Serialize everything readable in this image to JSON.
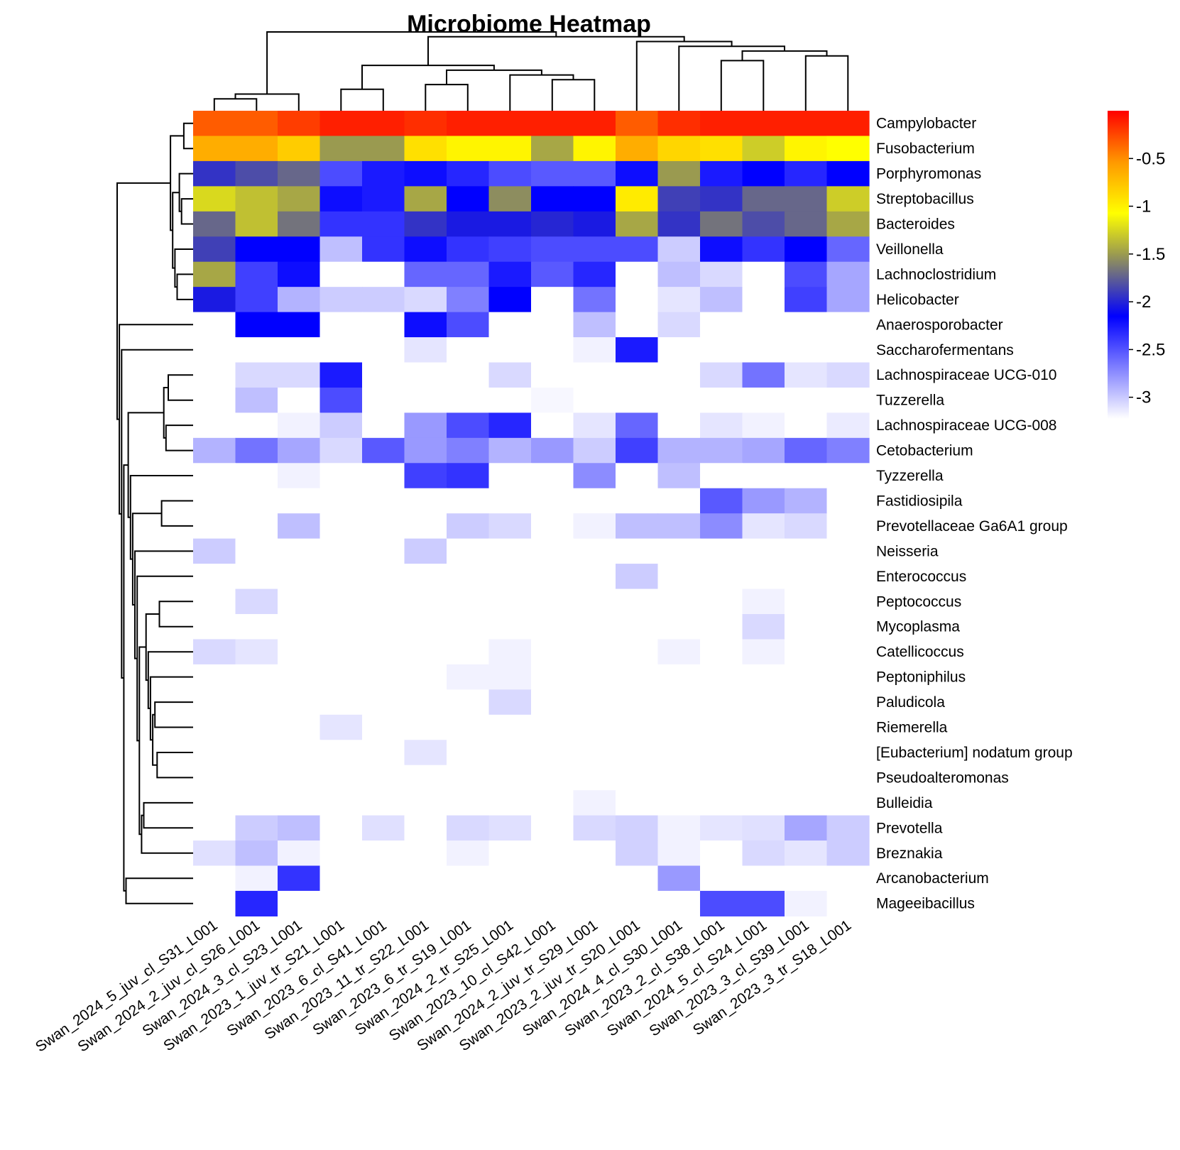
{
  "chart_data": {
    "type": "heatmap",
    "title": "Microbiome Heatmap",
    "columns": [
      "Swan_2024_5_juv_cl_S31_L001",
      "Swan_2024_2_juv_cl_S26_L001",
      "Swan_2024_3_cl_S23_L001",
      "Swan_2023_1_juv_tr_S21_L001",
      "Swan_2023_6_cl_S41_L001",
      "Swan_2023_11_tr_S22_L001",
      "Swan_2023_6_tr_S19_L001",
      "Swan_2024_2_tr_S25_L001",
      "Swan_2023_10_cl_S42_L001",
      "Swan_2024_2_juv_tr_S29_L001",
      "Swan_2023_2_juv_tr_S20_L001",
      "Swan_2024_4_cl_S30_L001",
      "Swan_2023_2_cl_S38_L001",
      "Swan_2024_5_cl_S24_L001",
      "Swan_2023_3_cl_S39_L001",
      "Swan_2023_3_tr_S18_L001"
    ],
    "rows": [
      "Campylobacter",
      "Fusobacterium",
      "Porphyromonas",
      "Streptobacillus",
      "Bacteroides",
      "Veillonella",
      "Lachnoclostridium",
      "Helicobacter",
      "Anaerosporobacter",
      "Saccharofermentans",
      "Lachnospiraceae UCG-010",
      "Tuzzerella",
      "Lachnospiraceae UCG-008",
      "Cetobacterium",
      "Tyzzerella",
      "Fastidiosipila",
      "Prevotellaceae Ga6A1 group",
      "Neisseria",
      "Enterococcus",
      "Peptococcus",
      "Mycoplasma",
      "Catellicoccus",
      "Peptoniphilus",
      "Paludicola",
      "Riemerella",
      "[Eubacterium] nodatum group",
      "Pseudoalteromonas",
      "Bulleidia",
      "Prevotella",
      "Breznakia",
      "Arcanobacterium",
      "Mageeibacillus"
    ],
    "values": [
      [
        -0.3,
        -0.3,
        -0.2,
        -0.1,
        -0.1,
        -0.15,
        -0.1,
        -0.1,
        -0.1,
        -0.1,
        -0.3,
        -0.15,
        -0.1,
        -0.1,
        -0.1,
        -0.1
      ],
      [
        -0.6,
        -0.6,
        -0.75,
        -1.4,
        -1.4,
        -0.85,
        -0.95,
        -0.95,
        -1.35,
        -0.95,
        -0.6,
        -0.8,
        -0.85,
        -1.2,
        -0.95,
        -1.0
      ],
      [
        -1.8,
        -1.7,
        -1.6,
        -2.3,
        -2.1,
        -2.05,
        -2.15,
        -2.3,
        -2.35,
        -2.35,
        -2.05,
        -1.4,
        -2.1,
        -2.0,
        -2.15,
        -2.0
      ],
      [
        -1.15,
        -1.25,
        -1.35,
        -2.05,
        -2.1,
        -1.35,
        -2.0,
        -1.45,
        -2.0,
        -2.0,
        -0.9,
        -1.75,
        -1.8,
        -1.6,
        -1.6,
        -1.2
      ],
      [
        -1.6,
        -1.25,
        -1.55,
        -2.2,
        -2.2,
        -1.8,
        -1.9,
        -1.9,
        -1.85,
        -1.9,
        -1.35,
        -1.8,
        -1.55,
        -1.7,
        -1.6,
        -1.35
      ],
      [
        -1.75,
        -2.0,
        -2.0,
        -2.75,
        -2.2,
        -2.05,
        -2.2,
        -2.25,
        -2.3,
        -2.3,
        -2.3,
        -2.8,
        -2.05,
        -2.2,
        -2.0,
        -2.4
      ],
      [
        -1.35,
        -2.25,
        -2.05,
        -3.0,
        -3.0,
        -2.4,
        -2.4,
        -2.1,
        -2.35,
        -2.15,
        -3.1,
        -2.75,
        -2.85,
        -3.0,
        -2.3,
        -2.65
      ],
      [
        -1.9,
        -2.25,
        -2.7,
        -2.8,
        -2.8,
        -2.85,
        -2.5,
        -2.0,
        -3.1,
        -2.45,
        -3.1,
        -2.9,
        -2.75,
        -3.0,
        -2.25,
        -2.65
      ],
      [
        -3.1,
        -2.0,
        -2.0,
        -3.1,
        -3.1,
        -2.05,
        -2.3,
        -3.1,
        -3.1,
        -2.75,
        -3.1,
        -2.85,
        -3.1,
        -3.1,
        -3.1,
        -3.1
      ],
      [
        -3.1,
        -3.1,
        -3.1,
        -3.1,
        -3.1,
        -2.9,
        -3.1,
        -3.1,
        -3.1,
        -2.95,
        -2.1,
        -3.1,
        -3.1,
        -3.1,
        -3.1,
        -3.1
      ],
      [
        -3.1,
        -2.85,
        -2.85,
        -2.1,
        -3.1,
        -3.1,
        -3.1,
        -2.85,
        -3.1,
        -3.1,
        -3.1,
        -3.1,
        -2.85,
        -2.45,
        -2.9,
        -2.85
      ],
      [
        -3.1,
        -2.75,
        -3.1,
        -2.3,
        -3.1,
        -3.1,
        -3.1,
        -3.1,
        -2.97,
        -3.1,
        -3.1,
        -3.1,
        -3.1,
        -3.1,
        -3.1,
        -3.1
      ],
      [
        -3.1,
        -3.1,
        -2.95,
        -2.8,
        -3.1,
        -2.6,
        -2.3,
        -2.15,
        -3.1,
        -2.9,
        -2.4,
        -3.1,
        -2.9,
        -2.95,
        -3.1,
        -2.92
      ],
      [
        -2.7,
        -2.45,
        -2.65,
        -2.85,
        -2.35,
        -2.6,
        -2.5,
        -2.7,
        -2.6,
        -2.8,
        -2.25,
        -2.7,
        -2.7,
        -2.65,
        -2.4,
        -2.5
      ],
      [
        -3.1,
        -3.1,
        -2.95,
        -3.1,
        -3.1,
        -2.25,
        -2.2,
        -3.1,
        -3.1,
        -2.55,
        -3.1,
        -2.75,
        -3.1,
        -3.1,
        -3.1,
        -3.1
      ],
      [
        -3.1,
        -3.1,
        -3.1,
        -3.1,
        -3.1,
        -3.1,
        -3.1,
        -3.1,
        -3.1,
        -3.1,
        -3.1,
        -3.1,
        -2.35,
        -2.6,
        -2.7,
        -3.1
      ],
      [
        -3.1,
        -3.1,
        -2.75,
        -3.1,
        -3.1,
        -3.1,
        -2.8,
        -2.85,
        -3.1,
        -2.95,
        -2.75,
        -2.75,
        -2.55,
        -2.9,
        -2.85,
        -3.1
      ],
      [
        -2.8,
        -3.1,
        -3.1,
        -3.1,
        -3.1,
        -2.8,
        -3.1,
        -3.1,
        -3.1,
        -3.1,
        -3.1,
        -3.1,
        -3.1,
        -3.1,
        -3.1,
        -3.1
      ],
      [
        -3.1,
        -3.1,
        -3.1,
        -3.1,
        -3.1,
        -3.1,
        -3.1,
        -3.1,
        -3.1,
        -3.1,
        -2.8,
        -3.1,
        -3.1,
        -3.1,
        -3.1,
        -3.1
      ],
      [
        -3.1,
        -2.85,
        -3.1,
        -3.1,
        -3.1,
        -3.1,
        -3.1,
        -3.1,
        -3.1,
        -3.1,
        -3.1,
        -3.1,
        -3.1,
        -2.95,
        -3.1,
        -3.1
      ],
      [
        -3.1,
        -3.1,
        -3.1,
        -3.1,
        -3.1,
        -3.1,
        -3.1,
        -3.1,
        -3.1,
        -3.1,
        -3.1,
        -3.1,
        -3.1,
        -2.85,
        -3.1,
        -3.1
      ],
      [
        -2.85,
        -2.9,
        -3.1,
        -3.1,
        -3.1,
        -3.1,
        -3.1,
        -2.95,
        -3.1,
        -3.1,
        -3.1,
        -2.95,
        -3.1,
        -2.95,
        -3.1,
        -3.1
      ],
      [
        -3.1,
        -3.1,
        -3.1,
        -3.1,
        -3.1,
        -3.1,
        -2.95,
        -2.95,
        -3.1,
        -3.1,
        -3.1,
        -3.1,
        -3.1,
        -3.1,
        -3.1,
        -3.1
      ],
      [
        -3.1,
        -3.1,
        -3.1,
        -3.1,
        -3.1,
        -3.1,
        -3.1,
        -2.85,
        -3.1,
        -3.1,
        -3.1,
        -3.1,
        -3.1,
        -3.1,
        -3.1,
        -3.1
      ],
      [
        -3.1,
        -3.1,
        -3.1,
        -2.9,
        -3.1,
        -3.1,
        -3.1,
        -3.1,
        -3.1,
        -3.1,
        -3.1,
        -3.1,
        -3.1,
        -3.1,
        -3.1,
        -3.1
      ],
      [
        -3.1,
        -3.1,
        -3.1,
        -3.1,
        -3.1,
        -2.9,
        -3.1,
        -3.1,
        -3.1,
        -3.1,
        -3.1,
        -3.1,
        -3.1,
        -3.1,
        -3.1,
        -3.1
      ],
      [
        -3.1,
        -3.1,
        -3.1,
        -3.1,
        -3.1,
        -3.1,
        -3.1,
        -3.1,
        -3.1,
        -3.1,
        -3.1,
        -3.1,
        -3.1,
        -3.1,
        -3.1,
        -3.1
      ],
      [
        -3.1,
        -3.1,
        -3.1,
        -3.1,
        -3.1,
        -3.1,
        -3.1,
        -3.1,
        -3.1,
        -2.95,
        -3.1,
        -3.1,
        -3.1,
        -3.1,
        -3.1,
        -3.1
      ],
      [
        -3.1,
        -2.8,
        -2.75,
        -3.1,
        -2.88,
        -3.1,
        -2.85,
        -2.88,
        -3.1,
        -2.85,
        -2.82,
        -2.95,
        -2.9,
        -2.88,
        -2.65,
        -2.8
      ],
      [
        -2.88,
        -2.75,
        -2.95,
        -3.1,
        -3.1,
        -3.1,
        -2.95,
        -3.1,
        -3.1,
        -3.1,
        -2.82,
        -2.95,
        -3.1,
        -2.85,
        -2.9,
        -2.8
      ],
      [
        -3.1,
        -2.95,
        -2.2,
        -3.1,
        -3.1,
        -3.1,
        -3.1,
        -3.1,
        -3.1,
        -3.1,
        -3.1,
        -2.6,
        -3.1,
        -3.1,
        -3.1,
        -3.1
      ],
      [
        -3.1,
        -2.15,
        -3.1,
        -3.1,
        -3.1,
        -3.1,
        -3.1,
        -3.1,
        -3.1,
        -3.1,
        -3.1,
        -3.1,
        -2.3,
        -2.3,
        -2.95,
        -3.1
      ]
    ],
    "color_scale": {
      "range": [
        -3,
        0
      ],
      "stops": [
        {
          "value": -3.0,
          "color": "#ffffff"
        },
        {
          "value": -2.0,
          "color": "#0000ff"
        },
        {
          "value": -1.4,
          "color": "#9a9a50"
        },
        {
          "value": -1.0,
          "color": "#ffff00"
        },
        {
          "value": -0.5,
          "color": "#ff9900"
        },
        {
          "value": 0.0,
          "color": "#ff0000"
        }
      ],
      "ticks": [
        {
          "value": -0.5,
          "label": "-0.5"
        },
        {
          "value": -1.0,
          "label": "-1"
        },
        {
          "value": -1.5,
          "label": "-1.5"
        },
        {
          "value": -2.0,
          "label": "-2"
        },
        {
          "value": -2.5,
          "label": "-2.5"
        },
        {
          "value": -3.0,
          "label": "-3"
        }
      ]
    },
    "column_dendrogram": [
      "pair:0:1",
      "pair:c0:2",
      "pair:3:4",
      "pair:5:6",
      "pair:8:9",
      "pair:c4:7",
      "pair:c3:c5",
      "pair:c2:c6",
      "pair:12:13",
      "pair:14:15",
      "pair:c8:c9",
      "pair:11:c10",
      "pair:10:c11",
      "pair:c7:c12",
      "pair:c1:c13"
    ],
    "row_dendrogram": [
      "pair:0:1",
      "pair:3:4",
      "pair:2:c1",
      "pair:6:7",
      "pair:5:c3",
      "pair:c2:c4",
      "pair:c0:c5",
      "pair:10:11",
      "pair:12:13",
      "pair:c7:c8",
      "pair:15:16",
      "pair:19:20",
      "pair:25:26",
      "pair:23:24",
      "pair:c13:c12",
      "pair:22:c14",
      "pair:21:c15",
      "pair:c11:c16",
      "pair:27:28",
      "pair:c18:29",
      "pair:c17:c19",
      "pair:18:c20",
      "pair:17:c21",
      "pair:c10:c22",
      "pair:14:c23",
      "pair:c9:c24",
      "pair:30:31",
      "pair:c25:c26",
      "pair:9:c27",
      "pair:8:c28",
      "pair:c6:c29"
    ]
  }
}
